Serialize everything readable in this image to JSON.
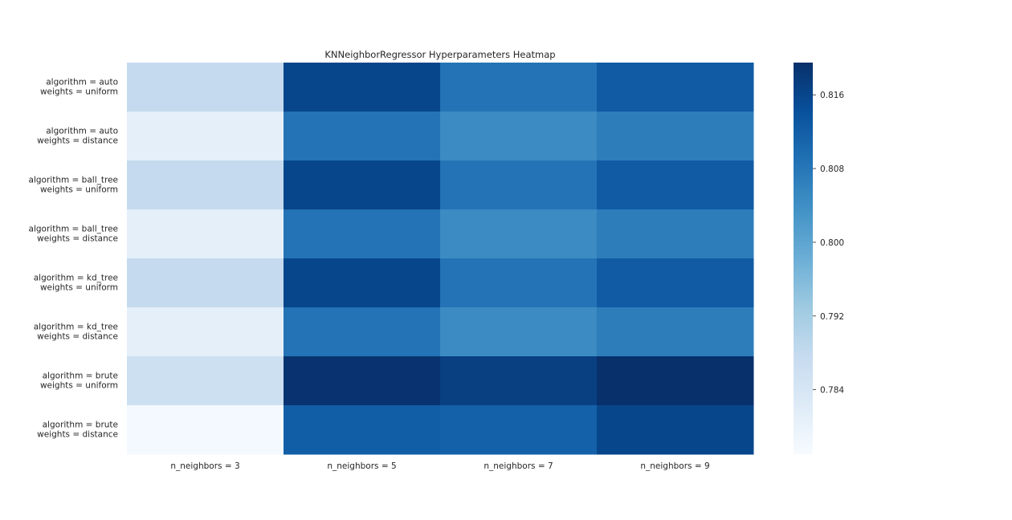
{
  "chart_data": {
    "type": "heatmap",
    "title": "KNNeighborRegressor Hyperparameters Heatmap",
    "xlabel": "",
    "ylabel": "",
    "columns": [
      "n_neighbors = 3",
      "n_neighbors = 5",
      "n_neighbors = 7",
      "n_neighbors = 9"
    ],
    "rows": [
      [
        "algorithm = auto",
        "weights = uniform"
      ],
      [
        "algorithm = auto",
        "weights = distance"
      ],
      [
        "algorithm = ball_tree",
        "weights = uniform"
      ],
      [
        "algorithm = ball_tree",
        "weights = distance"
      ],
      [
        "algorithm = kd_tree",
        "weights = uniform"
      ],
      [
        "algorithm = kd_tree",
        "weights = distance"
      ],
      [
        "algorithm = brute",
        "weights = uniform"
      ],
      [
        "algorithm = brute",
        "weights = distance"
      ]
    ],
    "values": [
      [
        0.7878,
        0.816,
        0.8085,
        0.8125
      ],
      [
        0.781,
        0.8085,
        0.8045,
        0.807
      ],
      [
        0.7878,
        0.816,
        0.8085,
        0.8125
      ],
      [
        0.781,
        0.8085,
        0.8045,
        0.807
      ],
      [
        0.7878,
        0.816,
        0.8085,
        0.8125
      ],
      [
        0.781,
        0.8085,
        0.8045,
        0.807
      ],
      [
        0.786,
        0.819,
        0.817,
        0.82
      ],
      [
        0.7778,
        0.812,
        0.8115,
        0.816
      ]
    ],
    "colormap": "Blues",
    "colorbar": {
      "min": 0.777,
      "max": 0.8195,
      "ticks": [
        0.784,
        0.792,
        0.8,
        0.808,
        0.816
      ],
      "tick_labels": [
        "0.784",
        "0.792",
        "0.800",
        "0.808",
        "0.816"
      ]
    },
    "grid": false,
    "legend": "colorbar-right"
  }
}
